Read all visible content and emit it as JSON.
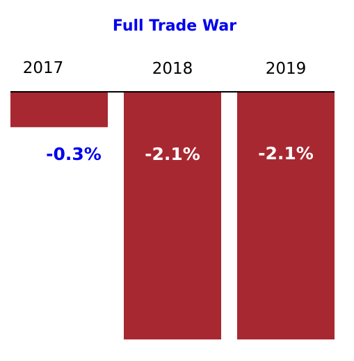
{
  "chart_data": {
    "type": "bar",
    "title": "Full Trade War",
    "categories": [
      "2017",
      "2018",
      "2019"
    ],
    "values": [
      -0.3,
      -2.1,
      -2.1
    ],
    "data_labels": [
      "-0.3%",
      "-2.1%",
      "-2.1%"
    ],
    "xlabel": "",
    "ylabel": "",
    "ylim": [
      -2.1,
      0
    ],
    "grid": false,
    "legend": "none",
    "category_axis_position": "top"
  },
  "colors": {
    "bar": "#a82831",
    "title": "#0000ee",
    "label_inside": "#ffffff",
    "label_outside": "#0000ee",
    "axis": "#000000"
  }
}
